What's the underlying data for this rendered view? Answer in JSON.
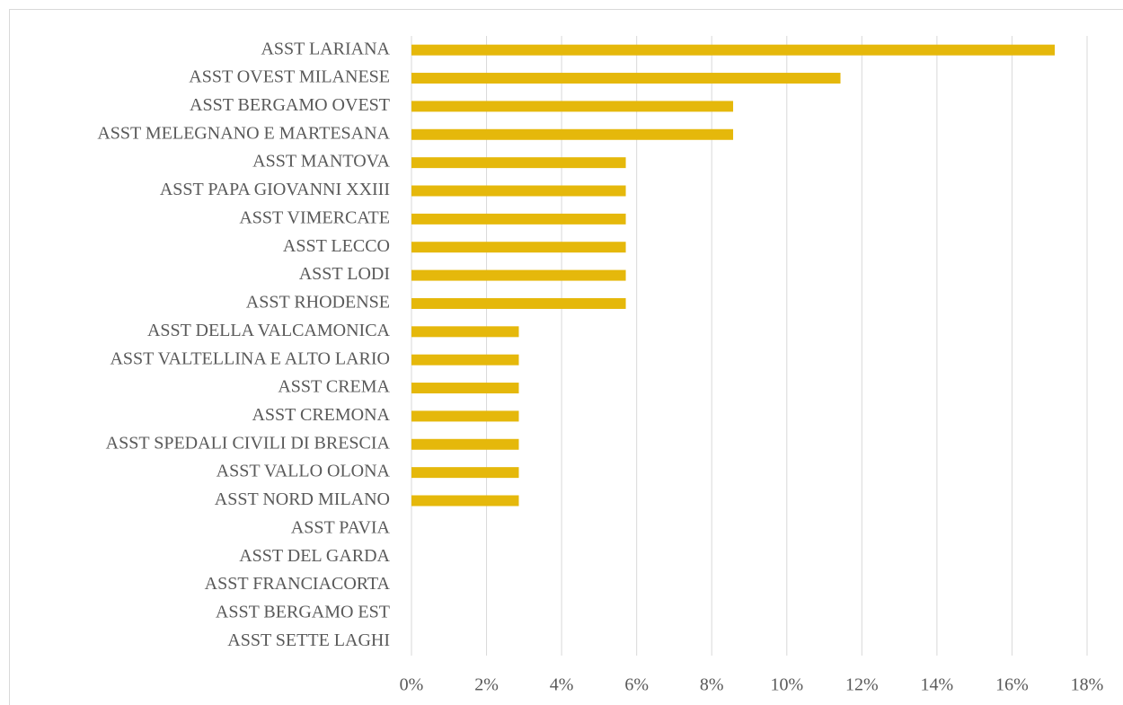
{
  "chart_data": {
    "type": "bar",
    "orientation": "horizontal",
    "categories": [
      "ASST LARIANA",
      "ASST OVEST MILANESE",
      "ASST BERGAMO OVEST",
      "ASST MELEGNANO E MARTESANA",
      "ASST MANTOVA",
      "ASST PAPA GIOVANNI XXIII",
      "ASST VIMERCATE",
      "ASST LECCO",
      "ASST LODI",
      "ASST RHODENSE",
      "ASST DELLA VALCAMONICA",
      "ASST VALTELLINA E ALTO LARIO",
      "ASST CREMA",
      "ASST CREMONA",
      "ASST SPEDALI CIVILI DI BRESCIA",
      "ASST VALLO OLONA",
      "ASST NORD MILANO",
      "ASST PAVIA",
      "ASST DEL GARDA",
      "ASST FRANCIACORTA",
      "ASST BERGAMO EST",
      "ASST SETTE LAGHI"
    ],
    "values": [
      17.14,
      11.43,
      8.57,
      8.57,
      5.71,
      5.71,
      5.71,
      5.71,
      5.71,
      5.71,
      2.86,
      2.86,
      2.86,
      2.86,
      2.86,
      2.86,
      2.86,
      0,
      0,
      0,
      0,
      0
    ],
    "color": "#e5b80b",
    "xlim": [
      0,
      18
    ],
    "xticks": [
      {
        "value": 0,
        "label": "0%"
      },
      {
        "value": 2,
        "label": "2%"
      },
      {
        "value": 4,
        "label": "4%"
      },
      {
        "value": 6,
        "label": "6%"
      },
      {
        "value": 8,
        "label": "8%"
      },
      {
        "value": 10,
        "label": "10%"
      },
      {
        "value": 12,
        "label": "12%"
      },
      {
        "value": 14,
        "label": "14%"
      },
      {
        "value": 16,
        "label": "16%"
      },
      {
        "value": 18,
        "label": "18%"
      }
    ],
    "grid": true
  }
}
